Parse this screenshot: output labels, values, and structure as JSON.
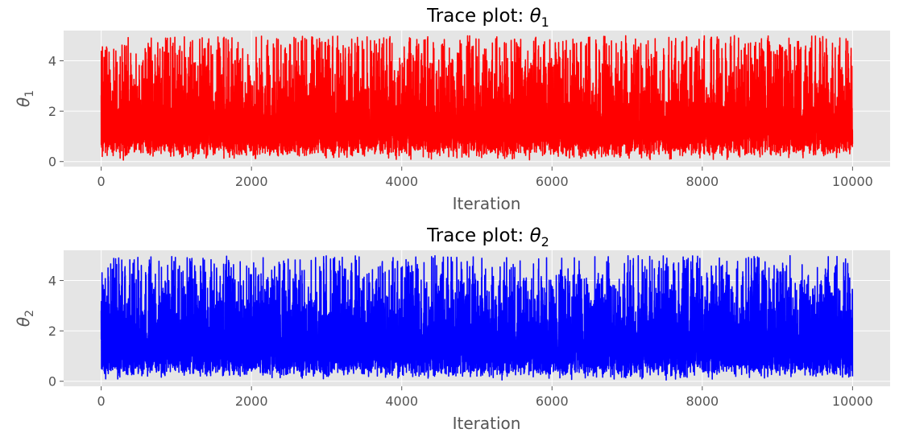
{
  "chart_data": [
    {
      "type": "line",
      "title": "Trace plot: ",
      "title_symbol": "θ",
      "title_subscript": "1",
      "xlabel": "Iteration",
      "ylabel_symbol": "θ",
      "ylabel_subscript": "1",
      "xlim": [
        -500,
        10500
      ],
      "ylim": [
        -0.2,
        5.2
      ],
      "xticks": [
        0,
        2000,
        4000,
        6000,
        8000,
        10000
      ],
      "yticks": [
        0,
        2,
        4
      ],
      "grid": true,
      "color": "#ff0000",
      "series": [
        {
          "x_range": [
            0,
            10000
          ],
          "samples": 10000,
          "value_range": [
            0.0,
            5.0
          ],
          "typical_mean": 1.6
        }
      ]
    },
    {
      "type": "line",
      "title": "Trace plot: ",
      "title_symbol": "θ",
      "title_subscript": "2",
      "xlabel": "Iteration",
      "ylabel_symbol": "θ",
      "ylabel_subscript": "2",
      "xlim": [
        -500,
        10500
      ],
      "ylim": [
        -0.2,
        5.2
      ],
      "xticks": [
        0,
        2000,
        4000,
        6000,
        8000,
        10000
      ],
      "yticks": [
        0,
        2,
        4
      ],
      "grid": true,
      "color": "#0000ff",
      "series": [
        {
          "x_range": [
            0,
            10000
          ],
          "samples": 10000,
          "value_range": [
            0.0,
            5.0
          ],
          "typical_mean": 1.6
        }
      ]
    }
  ],
  "colors": {
    "axes_background": "#e5e5e5",
    "grid": "#ffffff",
    "tick_text": "#555555",
    "label_text": "#555555",
    "title_text": "#000000"
  }
}
